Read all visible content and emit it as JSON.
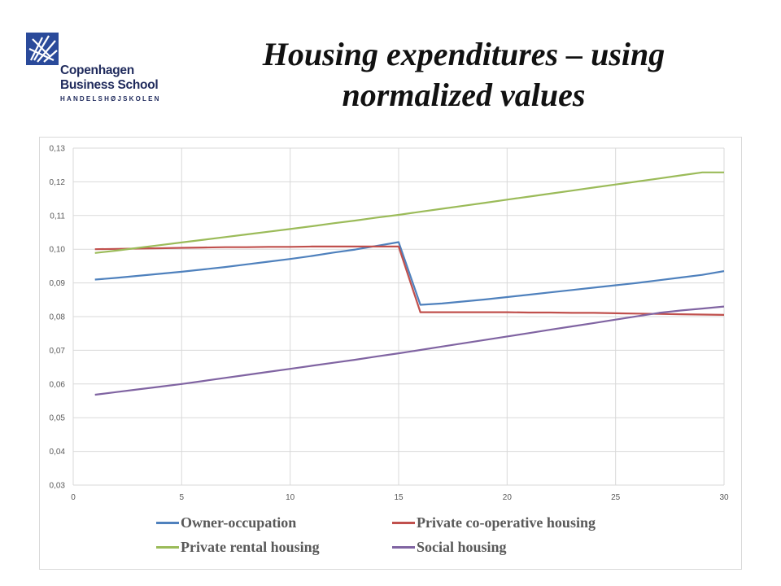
{
  "logo": {
    "line1": "Copenhagen",
    "line2": "Business School",
    "line3": "HANDELSHØJSKOLEN"
  },
  "title": "Housing expenditures – using normalized values",
  "chart_data": {
    "type": "line",
    "title": "Housing expenditures – using normalized values",
    "xlabel": "",
    "ylabel": "",
    "xlim": [
      0,
      30
    ],
    "ylim": [
      0.03,
      0.13
    ],
    "x_ticks": [
      "0",
      "5",
      "10",
      "15",
      "20",
      "25",
      "30"
    ],
    "y_ticks": [
      "0,03",
      "0,04",
      "0,05",
      "0,06",
      "0,07",
      "0,08",
      "0,09",
      "0,10",
      "0,11",
      "0,12",
      "0,13"
    ],
    "grid": true,
    "legend": "bottom",
    "x": [
      1,
      2,
      3,
      4,
      5,
      6,
      7,
      8,
      9,
      10,
      11,
      12,
      13,
      14,
      15,
      16,
      17,
      18,
      19,
      20,
      21,
      22,
      23,
      24,
      25,
      26,
      27,
      28,
      29,
      30
    ],
    "series": [
      {
        "name": "Owner-occupation",
        "color": "#4f81bd",
        "values": [
          0.091,
          0.0915,
          0.0921,
          0.0927,
          0.0933,
          0.094,
          0.0947,
          0.0955,
          0.0963,
          0.0971,
          0.098,
          0.099,
          0.0999,
          0.101,
          0.1021,
          0.0835,
          0.0839,
          0.0845,
          0.0851,
          0.0858,
          0.0865,
          0.0872,
          0.0879,
          0.0886,
          0.0893,
          0.09,
          0.0908,
          0.0916,
          0.0924,
          0.0935
        ]
      },
      {
        "name": "Private co-operative housing",
        "color": "#c0504d",
        "values": [
          0.1,
          0.1001,
          0.1002,
          0.1003,
          0.1004,
          0.1005,
          0.1006,
          0.1006,
          0.1007,
          0.1007,
          0.1008,
          0.1008,
          0.1008,
          0.1008,
          0.1008,
          0.0813,
          0.0813,
          0.0813,
          0.0813,
          0.0813,
          0.0812,
          0.0812,
          0.0811,
          0.0811,
          0.081,
          0.0809,
          0.0808,
          0.0807,
          0.0806,
          0.0805
        ]
      },
      {
        "name": "Private rental housing",
        "color": "#9bbb59",
        "values": [
          0.0989,
          0.0996,
          0.1004,
          0.1012,
          0.102,
          0.1028,
          0.1036,
          0.1044,
          0.1052,
          0.106,
          0.1068,
          0.1077,
          0.1085,
          0.1094,
          0.1102,
          0.1111,
          0.112,
          0.1129,
          0.1138,
          0.1147,
          0.1156,
          0.1165,
          0.1174,
          0.1183,
          0.1192,
          0.1201,
          0.121,
          0.1219,
          0.1228,
          0.1228
        ]
      },
      {
        "name": "Social housing",
        "color": "#8064a2",
        "values": [
          0.0568,
          0.0576,
          0.0584,
          0.0592,
          0.06,
          0.0609,
          0.0618,
          0.0627,
          0.0636,
          0.0645,
          0.0654,
          0.0663,
          0.0672,
          0.0682,
          0.0691,
          0.0701,
          0.0711,
          0.0721,
          0.0731,
          0.0741,
          0.0751,
          0.0761,
          0.0771,
          0.0781,
          0.0791,
          0.0801,
          0.0811,
          0.0818,
          0.0824,
          0.083
        ]
      }
    ]
  }
}
